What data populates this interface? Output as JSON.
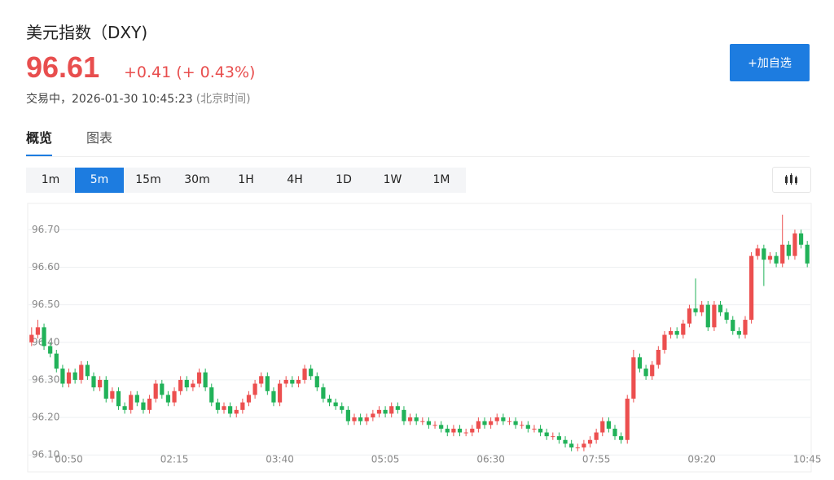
{
  "header": {
    "title": "美元指数（DXY)",
    "price": "96.61",
    "change": "+0.41",
    "change_percent": "(+ 0.43%)",
    "status": "交易中，2026-01-30 10:45:23",
    "timezone": "(北京时间)",
    "watch_button": "+加自选"
  },
  "tabs": {
    "items": [
      "概览",
      "图表"
    ],
    "active": 0
  },
  "intervals": {
    "items": [
      "1m",
      "5m",
      "15m",
      "30m",
      "1H",
      "4H",
      "1D",
      "1W",
      "1M"
    ],
    "active": 1
  },
  "chart_data": {
    "type": "candlestick",
    "up_color": "#ec4f4f",
    "down_color": "#21b259",
    "grid": true,
    "ylim": [
      96.055,
      96.77
    ],
    "yticks": [
      {
        "value": 96.1,
        "label": "96.10"
      },
      {
        "value": 96.2,
        "label": "96.20"
      },
      {
        "value": 96.3,
        "label": "96.30"
      },
      {
        "value": 96.4,
        "label": "96.40"
      },
      {
        "value": 96.5,
        "label": "96.50"
      },
      {
        "value": 96.6,
        "label": "96.60"
      },
      {
        "value": 96.7,
        "label": "96.70"
      }
    ],
    "categories": [
      null,
      null,
      null,
      null,
      null,
      null,
      "00:50",
      null,
      null,
      null,
      null,
      null,
      null,
      null,
      null,
      null,
      null,
      null,
      null,
      null,
      null,
      null,
      null,
      "02:15",
      null,
      null,
      null,
      null,
      null,
      null,
      null,
      null,
      null,
      null,
      null,
      null,
      null,
      null,
      null,
      null,
      "03:40",
      null,
      null,
      null,
      null,
      null,
      null,
      null,
      null,
      null,
      null,
      null,
      null,
      null,
      null,
      null,
      null,
      "05:05",
      null,
      null,
      null,
      null,
      null,
      null,
      null,
      null,
      null,
      null,
      null,
      null,
      null,
      null,
      null,
      null,
      "06:30",
      null,
      null,
      null,
      null,
      null,
      null,
      null,
      null,
      null,
      null,
      null,
      null,
      null,
      null,
      null,
      null,
      "07:55",
      null,
      null,
      null,
      null,
      null,
      null,
      null,
      null,
      null,
      null,
      null,
      null,
      null,
      null,
      null,
      null,
      "09:20",
      null,
      null,
      null,
      null,
      null,
      null,
      null,
      null,
      null,
      null,
      null,
      null,
      null,
      null,
      null,
      null,
      "10:45"
    ],
    "open": [
      96.4,
      96.42,
      96.44,
      96.39,
      96.37,
      96.33,
      96.29,
      96.32,
      96.3,
      96.34,
      96.31,
      96.28,
      96.3,
      96.25,
      96.27,
      96.23,
      96.22,
      96.26,
      96.24,
      96.22,
      96.25,
      96.29,
      96.26,
      96.24,
      96.27,
      96.3,
      96.28,
      96.29,
      96.32,
      96.28,
      96.24,
      96.22,
      96.23,
      96.21,
      96.22,
      96.24,
      96.26,
      96.29,
      96.31,
      96.27,
      96.24,
      96.29,
      96.3,
      96.29,
      96.3,
      96.33,
      96.31,
      96.28,
      96.25,
      96.24,
      96.23,
      96.22,
      96.19,
      96.2,
      96.19,
      96.2,
      96.21,
      96.22,
      96.21,
      96.23,
      96.22,
      96.19,
      96.2,
      96.19,
      96.19,
      96.18,
      96.18,
      96.17,
      96.16,
      96.17,
      96.16,
      96.16,
      96.17,
      96.19,
      96.18,
      96.19,
      96.2,
      96.19,
      96.19,
      96.18,
      96.18,
      96.17,
      96.17,
      96.16,
      96.15,
      96.15,
      96.14,
      96.13,
      96.12,
      96.12,
      96.13,
      96.14,
      96.16,
      96.19,
      96.17,
      96.15,
      96.14,
      96.25,
      96.36,
      96.33,
      96.31,
      96.34,
      96.38,
      96.42,
      96.43,
      96.42,
      96.45,
      96.49,
      96.48,
      96.5,
      96.44,
      96.5,
      96.48,
      96.46,
      96.43,
      96.42,
      96.46,
      96.63,
      96.65,
      96.62,
      96.63,
      96.61,
      96.66,
      96.63,
      96.69,
      96.66
    ],
    "high": [
      96.44,
      96.46,
      96.45,
      96.4,
      96.38,
      96.34,
      96.33,
      96.33,
      96.35,
      96.35,
      96.32,
      96.31,
      96.31,
      96.28,
      96.28,
      96.24,
      96.27,
      96.27,
      96.25,
      96.26,
      96.3,
      96.3,
      96.27,
      96.28,
      96.31,
      96.31,
      96.3,
      96.33,
      96.33,
      96.29,
      96.25,
      96.24,
      96.24,
      96.23,
      96.25,
      96.27,
      96.3,
      96.32,
      96.32,
      96.28,
      96.3,
      96.31,
      96.31,
      96.31,
      96.34,
      96.34,
      96.32,
      96.29,
      96.26,
      96.25,
      96.24,
      96.23,
      96.21,
      96.21,
      96.21,
      96.22,
      96.23,
      96.23,
      96.24,
      96.24,
      96.23,
      96.21,
      96.21,
      96.2,
      96.2,
      96.19,
      96.19,
      96.18,
      96.18,
      96.18,
      96.17,
      96.18,
      96.2,
      96.2,
      96.2,
      96.21,
      96.21,
      96.2,
      96.2,
      96.19,
      96.19,
      96.18,
      96.18,
      96.17,
      96.16,
      96.16,
      96.15,
      96.14,
      96.13,
      96.14,
      96.15,
      96.17,
      96.2,
      96.2,
      96.18,
      96.16,
      96.26,
      96.38,
      96.37,
      96.34,
      96.35,
      96.39,
      96.43,
      96.44,
      96.44,
      96.46,
      96.5,
      96.57,
      96.51,
      96.51,
      96.51,
      96.51,
      96.49,
      96.47,
      96.44,
      96.47,
      96.64,
      96.66,
      96.66,
      96.64,
      96.64,
      96.74,
      96.67,
      96.7,
      96.7,
      96.67
    ],
    "low": [
      96.39,
      96.41,
      96.38,
      96.36,
      96.32,
      96.28,
      96.28,
      96.29,
      96.29,
      96.3,
      96.27,
      96.27,
      96.24,
      96.24,
      96.22,
      96.21,
      96.21,
      96.23,
      96.21,
      96.21,
      96.24,
      96.25,
      96.23,
      96.23,
      96.26,
      96.27,
      96.27,
      96.28,
      96.27,
      96.23,
      96.21,
      96.21,
      96.2,
      96.2,
      96.21,
      96.23,
      96.25,
      96.28,
      96.26,
      96.23,
      96.23,
      96.28,
      96.28,
      96.28,
      96.29,
      96.3,
      96.27,
      96.24,
      96.23,
      96.22,
      96.21,
      96.18,
      96.18,
      96.18,
      96.18,
      96.19,
      96.2,
      96.2,
      96.2,
      96.21,
      96.18,
      96.18,
      96.18,
      96.18,
      96.17,
      96.17,
      96.16,
      96.15,
      96.15,
      96.15,
      96.15,
      96.15,
      96.16,
      96.17,
      96.17,
      96.18,
      96.18,
      96.18,
      96.17,
      96.17,
      96.16,
      96.16,
      96.15,
      96.14,
      96.14,
      96.13,
      96.12,
      96.11,
      96.11,
      96.11,
      96.12,
      96.13,
      96.15,
      96.16,
      96.14,
      96.13,
      96.13,
      96.24,
      96.32,
      96.3,
      96.3,
      96.33,
      96.37,
      96.41,
      96.41,
      96.41,
      96.44,
      96.47,
      96.47,
      96.43,
      96.43,
      96.47,
      96.45,
      96.42,
      96.41,
      96.41,
      96.45,
      96.62,
      96.55,
      96.61,
      96.6,
      96.6,
      96.62,
      96.62,
      96.65,
      96.6
    ],
    "close": [
      96.42,
      96.44,
      96.39,
      96.37,
      96.33,
      96.29,
      96.32,
      96.3,
      96.34,
      96.31,
      96.28,
      96.3,
      96.25,
      96.27,
      96.23,
      96.22,
      96.26,
      96.24,
      96.22,
      96.25,
      96.29,
      96.26,
      96.24,
      96.27,
      96.3,
      96.28,
      96.29,
      96.32,
      96.28,
      96.24,
      96.22,
      96.23,
      96.21,
      96.22,
      96.24,
      96.26,
      96.29,
      96.31,
      96.27,
      96.24,
      96.29,
      96.3,
      96.29,
      96.3,
      96.33,
      96.31,
      96.28,
      96.25,
      96.24,
      96.23,
      96.22,
      96.19,
      96.2,
      96.19,
      96.2,
      96.21,
      96.22,
      96.21,
      96.23,
      96.22,
      96.19,
      96.2,
      96.19,
      96.19,
      96.18,
      96.18,
      96.17,
      96.16,
      96.17,
      96.16,
      96.16,
      96.17,
      96.19,
      96.18,
      96.19,
      96.2,
      96.19,
      96.19,
      96.18,
      96.18,
      96.17,
      96.17,
      96.16,
      96.15,
      96.15,
      96.14,
      96.13,
      96.12,
      96.12,
      96.13,
      96.14,
      96.16,
      96.19,
      96.17,
      96.15,
      96.14,
      96.25,
      96.36,
      96.33,
      96.31,
      96.34,
      96.38,
      96.42,
      96.43,
      96.42,
      96.45,
      96.49,
      96.48,
      96.5,
      96.44,
      96.5,
      96.48,
      96.46,
      96.43,
      96.42,
      96.46,
      96.63,
      96.65,
      96.62,
      96.63,
      96.61,
      96.66,
      96.63,
      96.69,
      96.66,
      96.61
    ]
  }
}
